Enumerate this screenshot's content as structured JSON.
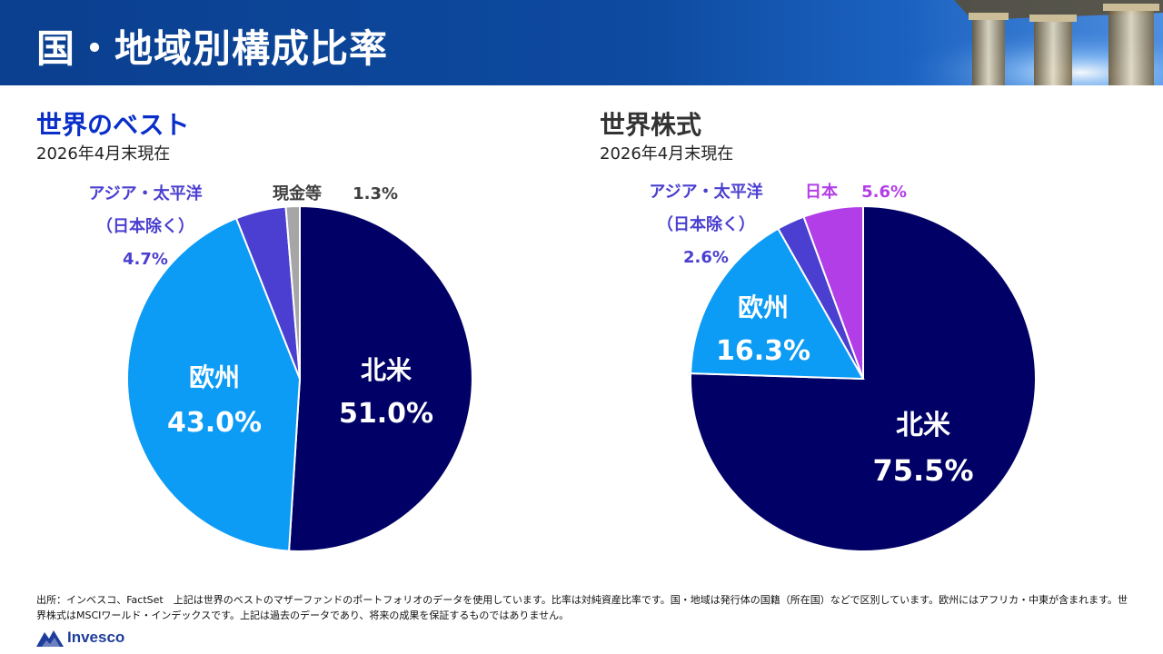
{
  "header": {
    "title": "国・地域別構成比率"
  },
  "colors": {
    "north_america": "#000066",
    "europe": "#0c9bf5",
    "asia_pacific": "#4a3fd0",
    "cash": "#a6a6a6",
    "japan": "#b23ee8",
    "left_title": "#0a2fc9",
    "right_title": "#333333",
    "label_ap": "#4a3fd0",
    "label_cash": "#404040",
    "label_japan": "#b23ee8"
  },
  "chart_data": [
    {
      "type": "pie",
      "title": "世界のベスト",
      "subtitle": "2026年4月末現在",
      "slices": [
        {
          "name": "北米",
          "value": 51.0,
          "value_label": "51.0%",
          "color_key": "north_america"
        },
        {
          "name": "欧州",
          "value": 43.0,
          "value_label": "43.0%",
          "color_key": "europe"
        },
        {
          "name": "アジア・太平洋（日本除く）",
          "name_line1": "アジア・太平洋",
          "name_line2": "（日本除く）",
          "value": 4.7,
          "value_label": "4.7%",
          "color_key": "asia_pacific"
        },
        {
          "name": "現金等",
          "value": 1.3,
          "value_label": "1.3%",
          "color_key": "cash"
        }
      ]
    },
    {
      "type": "pie",
      "title": "世界株式",
      "subtitle": "2026年4月末現在",
      "slices": [
        {
          "name": "北米",
          "value": 75.5,
          "value_label": "75.5%",
          "color_key": "north_america"
        },
        {
          "name": "欧州",
          "value": 16.3,
          "value_label": "16.3%",
          "color_key": "europe"
        },
        {
          "name": "アジア・太平洋（日本除く）",
          "name_line1": "アジア・太平洋",
          "name_line2": "（日本除く）",
          "value": 2.6,
          "value_label": "2.6%",
          "color_key": "asia_pacific"
        },
        {
          "name": "日本",
          "value": 5.6,
          "value_label": "5.6%",
          "color_key": "japan"
        }
      ]
    }
  ],
  "footnote": "出所：インベスコ、FactSet　上記は世界のベストのマザーファンドのポートフォリオのデータを使用しています。比率は対純資産比率です。国・地域は発行体の国籍（所在国）などで区別しています。欧州にはアフリカ・中東が含まれます。世界株式はMSCIワールド・インデックスです。上記は過去のデータであり、将来の成果を保証するものではありません。",
  "logo": {
    "text": "Invesco",
    "icon": "invesco-mountain-icon"
  }
}
